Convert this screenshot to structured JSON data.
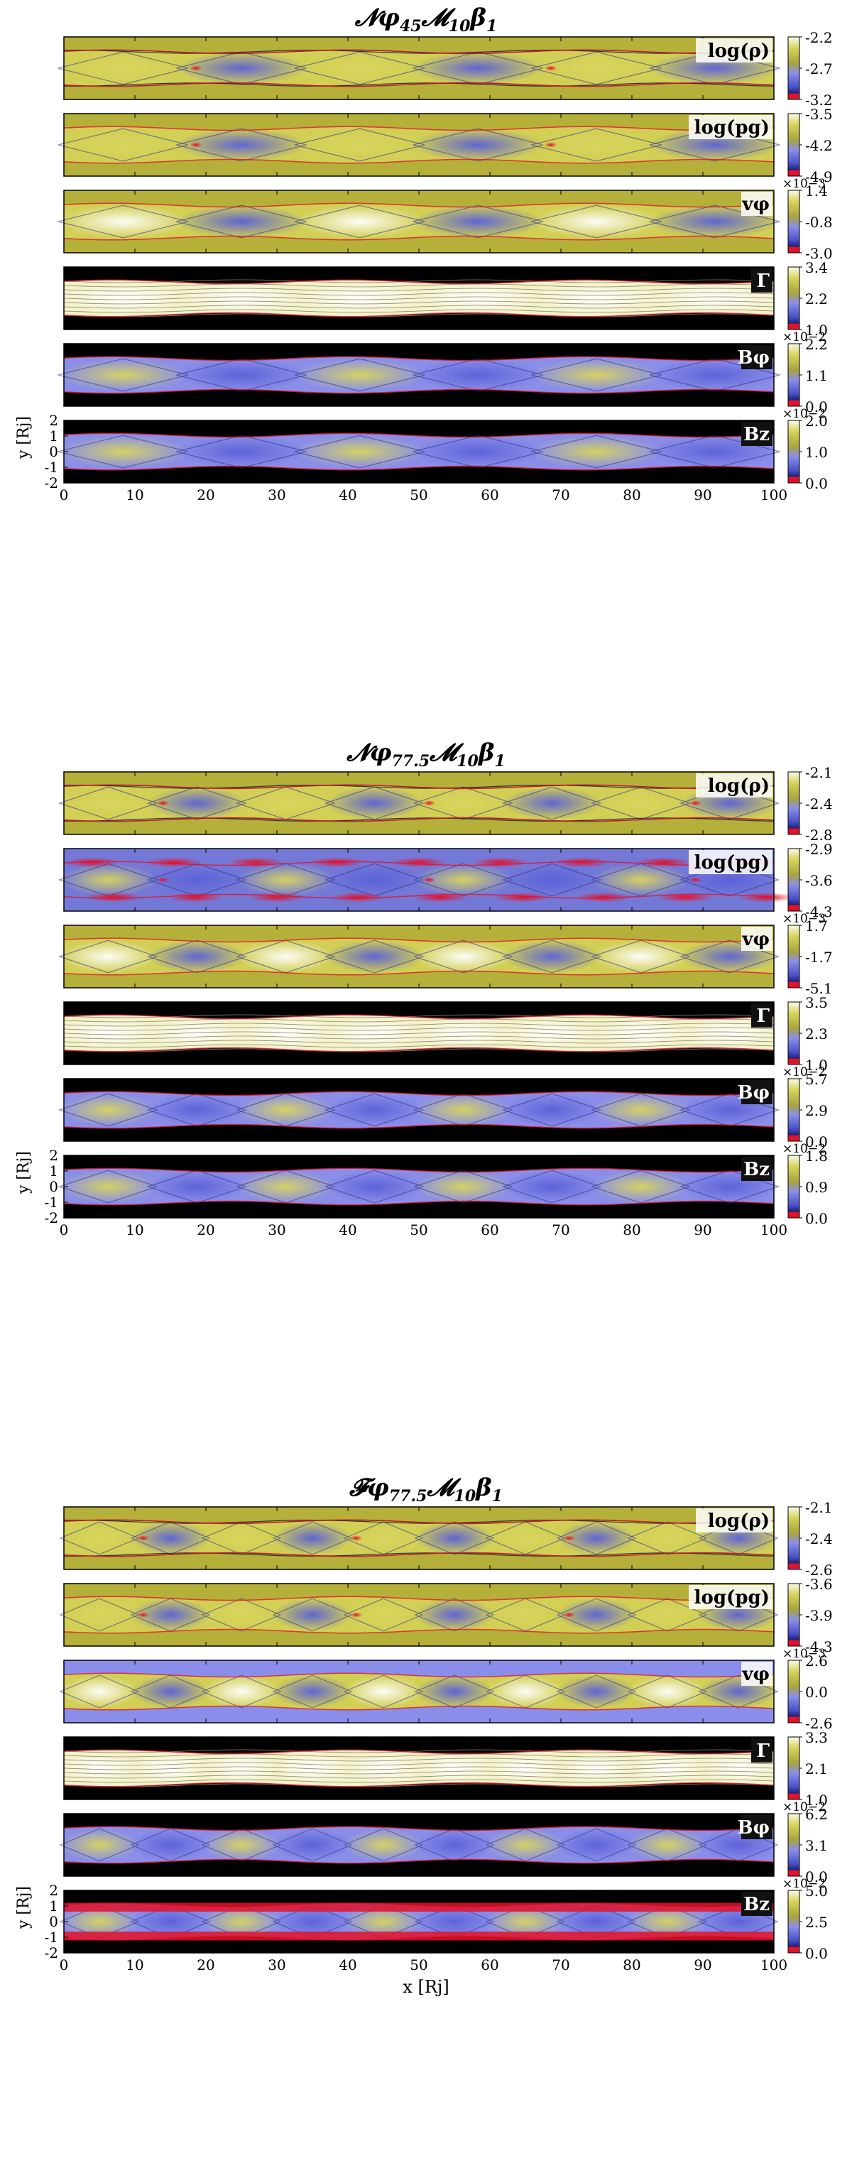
{
  "chart_data": [
    {
      "type": "heatmap",
      "title": "𝓝φ45𝓜10β1",
      "title_parts": {
        "main": "𝓝φ",
        "sub1": "45",
        "mid": "𝓜",
        "sub2": "10",
        "tail": "β",
        "sub3": "1"
      },
      "xlabel": "",
      "ylabel": "y [Rj]",
      "xlim": [
        0,
        100
      ],
      "ylim": [
        -2,
        2
      ],
      "x_ticks": [
        "0",
        "10",
        "20",
        "30",
        "40",
        "50",
        "60",
        "70",
        "80",
        "90",
        "100"
      ],
      "y_ticks": [
        "2",
        "1",
        "0",
        "-1",
        "-2"
      ],
      "panels": [
        {
          "label": "log(ρ)",
          "colorbar_ticks": [
            "-2.2",
            "-2.7",
            "-3.2"
          ],
          "multiplier": ""
        },
        {
          "label": "log(pg)",
          "colorbar_ticks": [
            "-3.5",
            "-4.2",
            "-4.9"
          ],
          "multiplier": ""
        },
        {
          "label": "vφ",
          "colorbar_ticks": [
            "1.4",
            "-0.8",
            "-3.0"
          ],
          "multiplier": "×10−3"
        },
        {
          "label": "Γ",
          "colorbar_ticks": [
            "3.4",
            "2.2",
            "1.0"
          ],
          "multiplier": ""
        },
        {
          "label": "Bφ",
          "colorbar_ticks": [
            "2.2",
            "1.1",
            "0.0"
          ],
          "multiplier": "×10−2"
        },
        {
          "label": "Bz",
          "colorbar_ticks": [
            "2.0",
            "1.0",
            "0.0"
          ],
          "multiplier": "×10−2"
        }
      ]
    },
    {
      "type": "heatmap",
      "title": "𝓝φ77.5𝓜10β1",
      "title_parts": {
        "main": "𝓝φ",
        "sub1": "77.5",
        "mid": "𝓜",
        "sub2": "10",
        "tail": "β",
        "sub3": "1"
      },
      "xlabel": "",
      "ylabel": "y [Rj]",
      "xlim": [
        0,
        100
      ],
      "ylim": [
        -2,
        2
      ],
      "x_ticks": [
        "0",
        "10",
        "20",
        "30",
        "40",
        "50",
        "60",
        "70",
        "80",
        "90",
        "100"
      ],
      "y_ticks": [
        "2",
        "1",
        "0",
        "-1",
        "-2"
      ],
      "panels": [
        {
          "label": "log(ρ)",
          "colorbar_ticks": [
            "-2.1",
            "-2.4",
            "-2.8"
          ],
          "multiplier": ""
        },
        {
          "label": "log(pg)",
          "colorbar_ticks": [
            "-2.9",
            "-3.6",
            "-4.3"
          ],
          "multiplier": ""
        },
        {
          "label": "vφ",
          "colorbar_ticks": [
            "1.7",
            "-1.7",
            "-5.1"
          ],
          "multiplier": "×10−3"
        },
        {
          "label": "Γ",
          "colorbar_ticks": [
            "3.5",
            "2.3",
            "1.0"
          ],
          "multiplier": ""
        },
        {
          "label": "Bφ",
          "colorbar_ticks": [
            "5.7",
            "2.9",
            "0.0"
          ],
          "multiplier": "×10−2"
        },
        {
          "label": "Bz",
          "colorbar_ticks": [
            "1.8",
            "0.9",
            "0.0"
          ],
          "multiplier": "×10−2"
        }
      ]
    },
    {
      "type": "heatmap",
      "title": "𝓕φ77.5𝓜10β1",
      "title_parts": {
        "main": "𝓕φ",
        "sub1": "77.5",
        "mid": "𝓜",
        "sub2": "10",
        "tail": "β",
        "sub3": "1"
      },
      "xlabel": "x [Rj]",
      "ylabel": "y [Rj]",
      "xlim": [
        0,
        100
      ],
      "ylim": [
        -2,
        2
      ],
      "x_ticks": [
        "0",
        "10",
        "20",
        "30",
        "40",
        "50",
        "60",
        "70",
        "80",
        "90",
        "100"
      ],
      "y_ticks": [
        "2",
        "1",
        "0",
        "-1",
        "-2"
      ],
      "panels": [
        {
          "label": "log(ρ)",
          "colorbar_ticks": [
            "-2.1",
            "-2.4",
            "-2.6"
          ],
          "multiplier": ""
        },
        {
          "label": "log(pg)",
          "colorbar_ticks": [
            "-3.6",
            "-3.9",
            "-4.3"
          ],
          "multiplier": ""
        },
        {
          "label": "vφ",
          "colorbar_ticks": [
            "2.6",
            "0.0",
            "-2.6"
          ],
          "multiplier": "×10−3"
        },
        {
          "label": "Γ",
          "colorbar_ticks": [
            "3.3",
            "2.1",
            "1.0"
          ],
          "multiplier": ""
        },
        {
          "label": "Bφ",
          "colorbar_ticks": [
            "6.2",
            "3.1",
            "0.0"
          ],
          "multiplier": "×10−2"
        },
        {
          "label": "Bz",
          "colorbar_ticks": [
            "5.0",
            "2.5",
            "0.0"
          ],
          "multiplier": "×10−2"
        }
      ]
    }
  ],
  "colors": {
    "olive": "#b5b03a",
    "white": "#ffffff",
    "blue": "#7b80e6",
    "darkblue": "#2a2f8a",
    "red": "#e3122a",
    "black": "#000000"
  }
}
